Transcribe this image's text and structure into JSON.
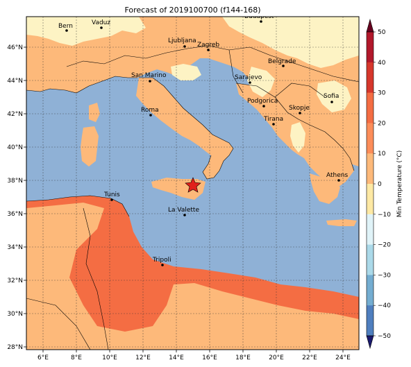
{
  "title": "Forecast of 2019100700 (f144-168)",
  "colorbar": {
    "label": "Min Temperature (°C)",
    "ticks": [
      "50",
      "40",
      "30",
      "20",
      "10",
      "0",
      "−10",
      "−20",
      "−30",
      "−40",
      "−50"
    ],
    "colors": [
      "#b2182b",
      "#d6372c",
      "#f46d43",
      "#fc8d59",
      "#fdb97a",
      "#fee9a4",
      "#e0f3f8",
      "#abd9e9",
      "#74add1",
      "#4f7fbf",
      "#313695"
    ]
  },
  "axes": {
    "x_ticks": [
      "6°E",
      "8°E",
      "10°E",
      "12°E",
      "14°E",
      "16°E",
      "18°E",
      "20°E",
      "22°E",
      "24°E"
    ],
    "y_ticks": [
      "46°N",
      "44°N",
      "42°N",
      "40°N",
      "38°N",
      "36°N",
      "34°N",
      "32°N",
      "30°N",
      "28°N"
    ]
  },
  "cities": [
    {
      "name": "Bern"
    },
    {
      "name": "Vaduz"
    },
    {
      "name": "Budapest"
    },
    {
      "name": "Ljubljana"
    },
    {
      "name": "Zagreb"
    },
    {
      "name": "Belgrade"
    },
    {
      "name": "San Marino"
    },
    {
      "name": "Sarajevo"
    },
    {
      "name": "Sofia"
    },
    {
      "name": "Roma"
    },
    {
      "name": "Podgorica"
    },
    {
      "name": "Skopje"
    },
    {
      "name": "Tirana"
    },
    {
      "name": "Athens"
    },
    {
      "name": "Tunis"
    },
    {
      "name": "La Valette"
    },
    {
      "name": "Tripoli"
    }
  ],
  "legend_colors": {
    "sea": "#8fb1d6",
    "cold_land": "#fdf3c4",
    "mild_land": "#fdb97a",
    "warm_land": "#f46d43",
    "marker": "#e0201b"
  }
}
